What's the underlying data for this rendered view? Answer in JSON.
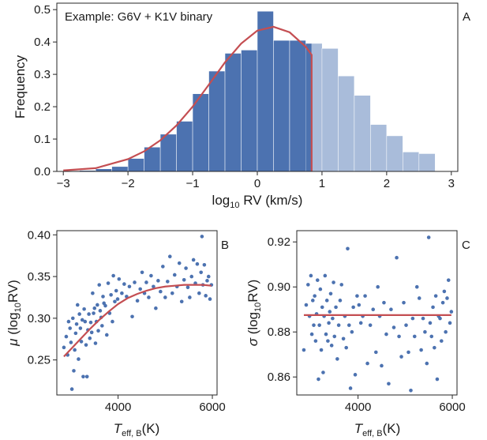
{
  "colors": {
    "bar_fit": "#4c72b0",
    "bar_tail": "#a9bcda",
    "curve": "#c44e52",
    "point": "#4c72b0",
    "axis": "#262626"
  },
  "panel_a": {
    "annotation": "Example: G6V + K1V binary",
    "letter": "A",
    "ylabel": "Frequency",
    "xlabel_parts": {
      "pre": "log",
      "sub": "10",
      "post": " RV (km/s)"
    }
  },
  "panel_b": {
    "letter": "B",
    "ylabel_parts": {
      "sym": "μ",
      "pre": " (log",
      "sub": "10",
      "post": "RV)"
    },
    "xlabel_parts": {
      "sym": "T",
      "sub": "eff, B",
      "post": "(K)"
    }
  },
  "panel_c": {
    "letter": "C",
    "ylabel_parts": {
      "sym": "σ",
      "pre": " (log",
      "sub": "10",
      "post": "RV)"
    },
    "xlabel_parts": {
      "sym": "T",
      "sub": "eff, B",
      "post": "(K)"
    }
  },
  "chart_data": [
    {
      "panel": "A",
      "type": "bar",
      "xlim": [
        -3.1,
        3.1
      ],
      "ylim": [
        0,
        0.52
      ],
      "xticks": [
        "−3",
        "−2",
        "−1",
        "0",
        "1",
        "2",
        "3"
      ],
      "xtick_values": [
        -3,
        -2,
        -1,
        0,
        1,
        2,
        3
      ],
      "yticks": [
        "0.0",
        "0.1",
        "0.2",
        "0.3",
        "0.4",
        "0.5"
      ],
      "ytick_values": [
        0,
        0.1,
        0.2,
        0.3,
        0.4,
        0.5
      ],
      "bin_width": 0.25,
      "bin_starts": [
        -3.0,
        -2.75,
        -2.5,
        -2.25,
        -2.0,
        -1.75,
        -1.5,
        -1.25,
        -1.0,
        -0.75,
        -0.5,
        -0.25,
        0.0,
        0.25,
        0.5,
        0.75,
        1.0,
        1.25,
        1.5,
        1.75,
        2.0,
        2.25,
        2.5
      ],
      "values": [
        0.002,
        0.003,
        0.008,
        0.015,
        0.04,
        0.075,
        0.115,
        0.155,
        0.24,
        0.31,
        0.365,
        0.375,
        0.495,
        0.405,
        0.405,
        0.395,
        0.38,
        0.295,
        0.235,
        0.145,
        0.11,
        0.06,
        0.055
      ],
      "fit_cutoff": 0.84,
      "fit_curve": {
        "x": [
          -3.0,
          -2.5,
          -2.0,
          -1.75,
          -1.5,
          -1.25,
          -1.0,
          -0.75,
          -0.5,
          -0.25,
          0.0,
          0.25,
          0.5,
          0.75,
          0.84
        ],
        "y": [
          0.003,
          0.01,
          0.038,
          0.062,
          0.096,
          0.142,
          0.2,
          0.268,
          0.337,
          0.395,
          0.435,
          0.447,
          0.43,
          0.385,
          0.36
        ]
      }
    },
    {
      "panel": "B",
      "type": "scatter",
      "xlim": [
        2700,
        6100
      ],
      "ylim": [
        0.208,
        0.405
      ],
      "xticks": [
        "4000",
        "6000"
      ],
      "xtick_values": [
        4000,
        6000
      ],
      "yticks": [
        "0.25",
        "0.30",
        "0.35",
        "0.40"
      ],
      "ytick_values": [
        0.25,
        0.3,
        0.35,
        0.4
      ],
      "points": [
        [
          2850,
          0.265
        ],
        [
          2900,
          0.278
        ],
        [
          2930,
          0.256
        ],
        [
          2950,
          0.296
        ],
        [
          2980,
          0.288
        ],
        [
          3000,
          0.271
        ],
        [
          3020,
          0.215
        ],
        [
          3040,
          0.3
        ],
        [
          3060,
          0.237
        ],
        [
          3080,
          0.262
        ],
        [
          3100,
          0.282
        ],
        [
          3120,
          0.293
        ],
        [
          3140,
          0.316
        ],
        [
          3160,
          0.251
        ],
        [
          3180,
          0.305
        ],
        [
          3200,
          0.288
        ],
        [
          3220,
          0.272
        ],
        [
          3240,
          0.298
        ],
        [
          3260,
          0.23
        ],
        [
          3280,
          0.311
        ],
        [
          3300,
          0.296
        ],
        [
          3320,
          0.268
        ],
        [
          3340,
          0.23
        ],
        [
          3360,
          0.286
        ],
        [
          3380,
          0.305
        ],
        [
          3400,
          0.276
        ],
        [
          3420,
          0.295
        ],
        [
          3440,
          0.283
        ],
        [
          3460,
          0.33
        ],
        [
          3480,
          0.306
        ],
        [
          3500,
          0.312
        ],
        [
          3520,
          0.27
        ],
        [
          3540,
          0.296
        ],
        [
          3560,
          0.316
        ],
        [
          3580,
          0.285
        ],
        [
          3600,
          0.34
        ],
        [
          3620,
          0.309
        ],
        [
          3640,
          0.301
        ],
        [
          3660,
          0.291
        ],
        [
          3680,
          0.326
        ],
        [
          3700,
          0.318
        ],
        [
          3730,
          0.315
        ],
        [
          3760,
          0.28
        ],
        [
          3790,
          0.342
        ],
        [
          3820,
          0.306
        ],
        [
          3850,
          0.328
        ],
        [
          3880,
          0.296
        ],
        [
          3900,
          0.351
        ],
        [
          3930,
          0.32
        ],
        [
          3960,
          0.333
        ],
        [
          3990,
          0.323
        ],
        [
          4020,
          0.347
        ],
        [
          4080,
          0.33
        ],
        [
          4130,
          0.341
        ],
        [
          4180,
          0.326
        ],
        [
          4240,
          0.338
        ],
        [
          4300,
          0.302
        ],
        [
          4350,
          0.343
        ],
        [
          4410,
          0.321
        ],
        [
          4470,
          0.335
        ],
        [
          4510,
          0.355
        ],
        [
          4560,
          0.33
        ],
        [
          4600,
          0.343
        ],
        [
          4650,
          0.325
        ],
        [
          4700,
          0.351
        ],
        [
          4750,
          0.338
        ],
        [
          4800,
          0.312
        ],
        [
          4850,
          0.345
        ],
        [
          4900,
          0.332
        ],
        [
          4950,
          0.362
        ],
        [
          5000,
          0.325
        ],
        [
          5050,
          0.344
        ],
        [
          5100,
          0.374
        ],
        [
          5150,
          0.33
        ],
        [
          5200,
          0.352
        ],
        [
          5250,
          0.338
        ],
        [
          5300,
          0.366
        ],
        [
          5350,
          0.32
        ],
        [
          5400,
          0.346
        ],
        [
          5440,
          0.36
        ],
        [
          5480,
          0.337
        ],
        [
          5520,
          0.325
        ],
        [
          5560,
          0.35
        ],
        [
          5600,
          0.37
        ],
        [
          5640,
          0.342
        ],
        [
          5680,
          0.365
        ],
        [
          5720,
          0.33
        ],
        [
          5760,
          0.355
        ],
        [
          5780,
          0.398
        ],
        [
          5800,
          0.34
        ],
        [
          5830,
          0.364
        ],
        [
          5860,
          0.327
        ],
        [
          5890,
          0.345
        ],
        [
          5920,
          0.35
        ],
        [
          5950,
          0.323
        ],
        [
          5980,
          0.34
        ]
      ],
      "fit_curve": {
        "x": [
          2850,
          3000,
          3200,
          3400,
          3600,
          3800,
          4000,
          4200,
          4400,
          4600,
          4800,
          5000,
          5200,
          5400,
          5600,
          5800,
          5980
        ],
        "y": [
          0.254,
          0.263,
          0.275,
          0.287,
          0.298,
          0.308,
          0.317,
          0.324,
          0.329,
          0.333,
          0.336,
          0.338,
          0.339,
          0.34,
          0.34,
          0.34,
          0.339
        ]
      }
    },
    {
      "panel": "C",
      "type": "scatter",
      "xlim": [
        2700,
        6100
      ],
      "ylim": [
        0.852,
        0.925
      ],
      "xticks": [
        "4000",
        "6000"
      ],
      "xtick_values": [
        4000,
        6000
      ],
      "yticks": [
        "0.86",
        "0.88",
        "0.90",
        "0.92"
      ],
      "ytick_values": [
        0.86,
        0.88,
        0.9,
        0.92
      ],
      "points": [
        [
          2850,
          0.872
        ],
        [
          2900,
          0.892
        ],
        [
          2940,
          0.901
        ],
        [
          2970,
          0.887
        ],
        [
          3000,
          0.905
        ],
        [
          3020,
          0.879
        ],
        [
          3040,
          0.894
        ],
        [
          3060,
          0.883
        ],
        [
          3080,
          0.896
        ],
        [
          3100,
          0.876
        ],
        [
          3120,
          0.888
        ],
        [
          3140,
          0.903
        ],
        [
          3160,
          0.859
        ],
        [
          3180,
          0.883
        ],
        [
          3200,
          0.899
        ],
        [
          3220,
          0.872
        ],
        [
          3240,
          0.891
        ],
        [
          3260,
          0.862
        ],
        [
          3280,
          0.887
        ],
        [
          3300,
          0.905
        ],
        [
          3320,
          0.879
        ],
        [
          3340,
          0.894
        ],
        [
          3360,
          0.876
        ],
        [
          3380,
          0.884
        ],
        [
          3400,
          0.889
        ],
        [
          3420,
          0.897
        ],
        [
          3440,
          0.874
        ],
        [
          3460,
          0.886
        ],
        [
          3480,
          0.902
        ],
        [
          3500,
          0.878
        ],
        [
          3530,
          0.891
        ],
        [
          3560,
          0.868
        ],
        [
          3590,
          0.883
        ],
        [
          3620,
          0.894
        ],
        [
          3650,
          0.901
        ],
        [
          3690,
          0.877
        ],
        [
          3720,
          0.887
        ],
        [
          3750,
          0.873
        ],
        [
          3780,
          0.917
        ],
        [
          3810,
          0.883
        ],
        [
          3840,
          0.855
        ],
        [
          3870,
          0.88
        ],
        [
          3900,
          0.891
        ],
        [
          3940,
          0.861
        ],
        [
          3980,
          0.896
        ],
        [
          4020,
          0.892
        ],
        [
          4060,
          0.884
        ],
        [
          4100,
          0.887
        ],
        [
          4150,
          0.896
        ],
        [
          4200,
          0.866
        ],
        [
          4260,
          0.883
        ],
        [
          4320,
          0.89
        ],
        [
          4380,
          0.871
        ],
        [
          4420,
          0.9
        ],
        [
          4460,
          0.887
        ],
        [
          4500,
          0.865
        ],
        [
          4550,
          0.893
        ],
        [
          4600,
          0.879
        ],
        [
          4650,
          0.857
        ],
        [
          4700,
          0.89
        ],
        [
          4760,
          0.882
        ],
        [
          4820,
          0.913
        ],
        [
          4870,
          0.878
        ],
        [
          4920,
          0.869
        ],
        [
          4970,
          0.893
        ],
        [
          5020,
          0.883
        ],
        [
          5070,
          0.871
        ],
        [
          5120,
          0.854
        ],
        [
          5160,
          0.886
        ],
        [
          5200,
          0.878
        ],
        [
          5250,
          0.9
        ],
        [
          5300,
          0.895
        ],
        [
          5340,
          0.872
        ],
        [
          5380,
          0.886
        ],
        [
          5420,
          0.88
        ],
        [
          5460,
          0.866
        ],
        [
          5500,
          0.922
        ],
        [
          5530,
          0.884
        ],
        [
          5560,
          0.878
        ],
        [
          5590,
          0.891
        ],
        [
          5620,
          0.873
        ],
        [
          5650,
          0.896
        ],
        [
          5680,
          0.859
        ],
        [
          5710,
          0.887
        ],
        [
          5740,
          0.886
        ],
        [
          5770,
          0.876
        ],
        [
          5800,
          0.893
        ],
        [
          5830,
          0.898
        ],
        [
          5860,
          0.88
        ],
        [
          5890,
          0.895
        ],
        [
          5920,
          0.903
        ],
        [
          5950,
          0.884
        ],
        [
          5980,
          0.889
        ]
      ],
      "fit_curve": {
        "x": [
          2850,
          5980
        ],
        "y": [
          0.8875,
          0.8875
        ]
      }
    }
  ]
}
